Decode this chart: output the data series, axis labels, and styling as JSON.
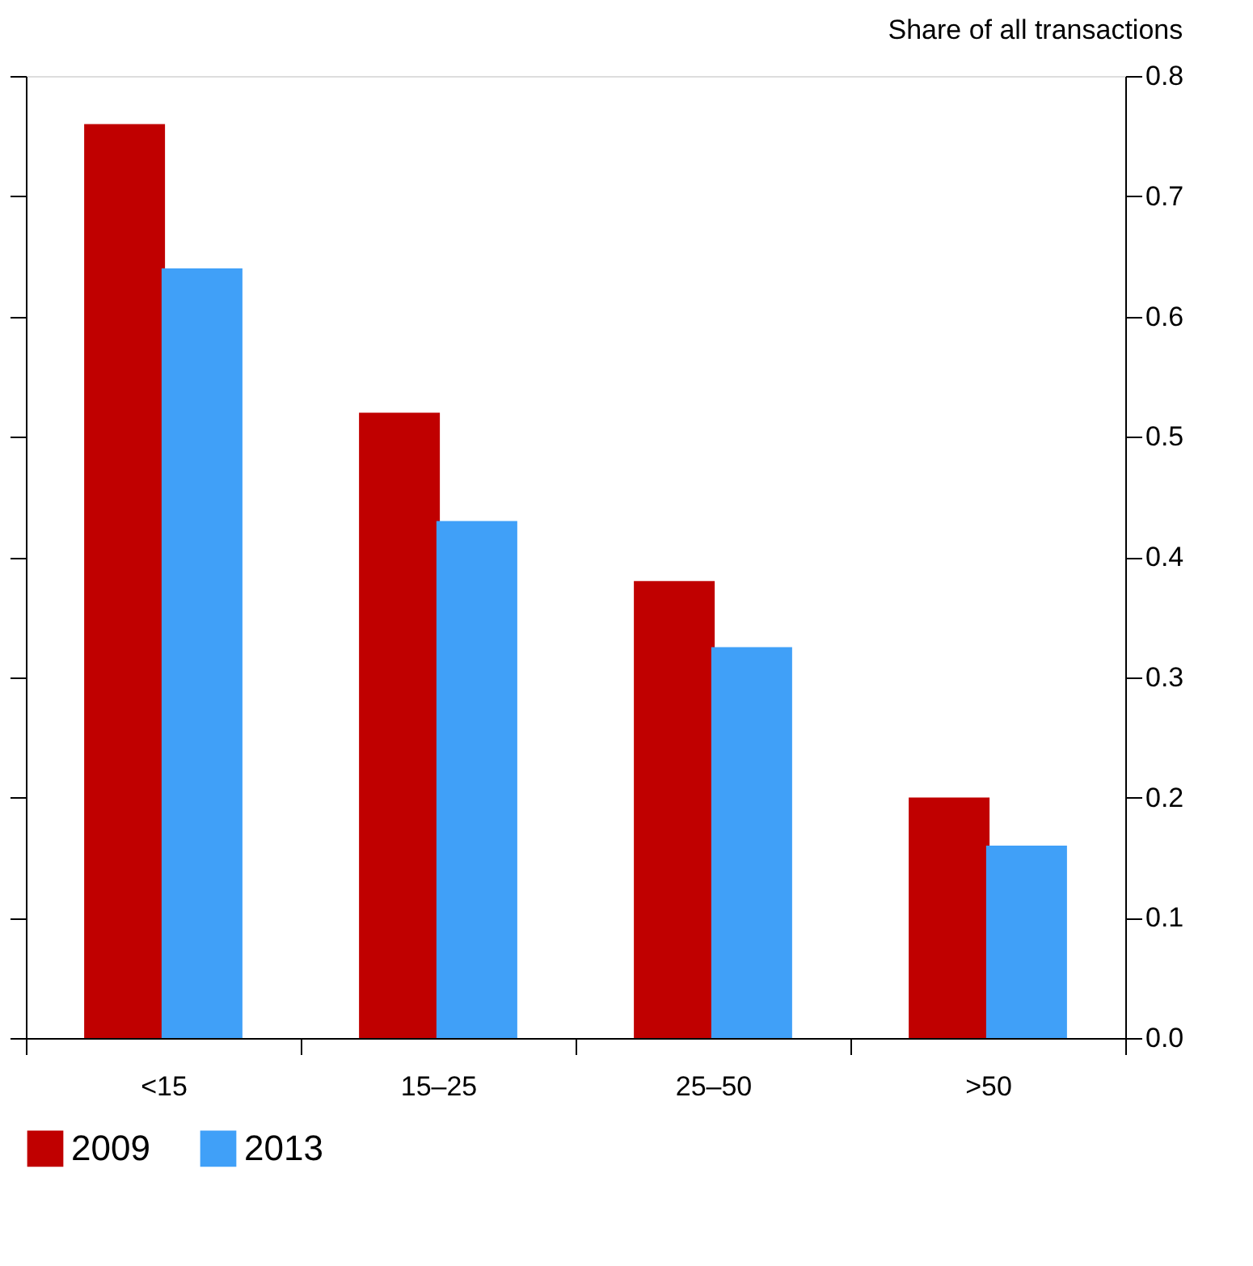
{
  "chart_data": {
    "type": "bar",
    "ylabel": "Share of all transactions",
    "categories": [
      "<15",
      "15–25",
      "25–50",
      ">50"
    ],
    "series": [
      {
        "name": "2009",
        "color": "#c00000",
        "values": [
          0.76,
          0.52,
          0.38,
          0.2
        ]
      },
      {
        "name": "2013",
        "color": "#40a0f8",
        "values": [
          0.64,
          0.43,
          0.325,
          0.16
        ]
      }
    ],
    "ylim": [
      0,
      0.8
    ],
    "yticks": [
      {
        "value": 0,
        "label": "0.0"
      },
      0.1,
      0.2,
      0.3,
      0.4,
      0.5,
      0.6,
      0.7,
      0.8
    ],
    "grid": false,
    "legend": "bottom left"
  }
}
